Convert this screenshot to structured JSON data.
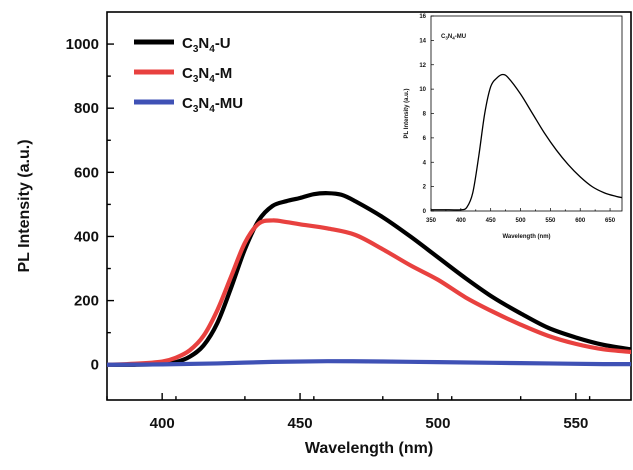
{
  "chart_data": [
    {
      "type": "line",
      "title": "",
      "xlabel": "Wavelength (nm)",
      "ylabel": "PL Intensity (a.u.)",
      "xlim": [
        380,
        570
      ],
      "ylim": [
        -110,
        1100
      ],
      "xticks": [
        400,
        450,
        500,
        550
      ],
      "yticks": [
        0,
        200,
        400,
        600,
        800,
        1000
      ],
      "grid": false,
      "legend_position": "top-left",
      "series": [
        {
          "name": "C3N4-U",
          "label_parts": [
            "C",
            "3",
            "N",
            "4",
            "-U"
          ],
          "color": "#000000",
          "x": [
            380,
            390,
            400,
            405,
            410,
            415,
            420,
            425,
            430,
            435,
            440,
            445,
            450,
            455,
            460,
            465,
            470,
            480,
            490,
            500,
            510,
            520,
            530,
            540,
            550,
            560,
            570
          ],
          "y": [
            0,
            0,
            2,
            8,
            25,
            60,
            130,
            240,
            360,
            450,
            495,
            510,
            520,
            532,
            535,
            530,
            510,
            460,
            400,
            335,
            270,
            210,
            160,
            115,
            85,
            62,
            48
          ]
        },
        {
          "name": "C3N4-M",
          "label_parts": [
            "C",
            "3",
            "N",
            "4",
            "-M"
          ],
          "color": "#e8413f",
          "x": [
            380,
            390,
            400,
            405,
            410,
            415,
            420,
            425,
            430,
            435,
            440,
            445,
            450,
            460,
            470,
            480,
            490,
            500,
            510,
            520,
            530,
            540,
            550,
            560,
            570
          ],
          "y": [
            0,
            3,
            10,
            22,
            45,
            90,
            170,
            275,
            380,
            440,
            450,
            445,
            438,
            425,
            405,
            360,
            310,
            265,
            210,
            165,
            125,
            90,
            65,
            48,
            40
          ]
        },
        {
          "name": "C3N4-MU",
          "label_parts": [
            "C",
            "3",
            "N",
            "4",
            "-MU"
          ],
          "color": "#3f51b5",
          "x": [
            380,
            400,
            420,
            440,
            460,
            480,
            500,
            520,
            540,
            560,
            570
          ],
          "y": [
            0,
            1,
            4,
            9,
            11,
            10,
            8,
            6,
            4,
            2,
            2
          ]
        }
      ]
    },
    {
      "type": "line",
      "title": "",
      "xlabel": "Wavelength (nm)",
      "ylabel": "PL Intensity (a.u.)",
      "xlim": [
        350,
        670
      ],
      "ylim": [
        0,
        16
      ],
      "xticks": [
        350,
        400,
        450,
        500,
        550,
        600,
        650
      ],
      "yticks": [
        0,
        2,
        4,
        6,
        8,
        10,
        12,
        14,
        16
      ],
      "grid": false,
      "legend_position": "top-left",
      "series": [
        {
          "name": "C3N4-MU",
          "label_parts": [
            "C",
            "3",
            "N",
            "4",
            "-MU"
          ],
          "color": "#000000",
          "x": [
            350,
            380,
            400,
            410,
            420,
            430,
            440,
            450,
            460,
            470,
            480,
            500,
            520,
            540,
            560,
            580,
            600,
            620,
            640,
            660,
            670
          ],
          "y": [
            0.1,
            0.1,
            0.1,
            0.3,
            1.5,
            4.5,
            8.0,
            10.2,
            10.9,
            11.2,
            10.9,
            9.6,
            8.0,
            6.4,
            5.0,
            3.8,
            2.8,
            2.0,
            1.5,
            1.2,
            1.1
          ]
        }
      ]
    }
  ]
}
